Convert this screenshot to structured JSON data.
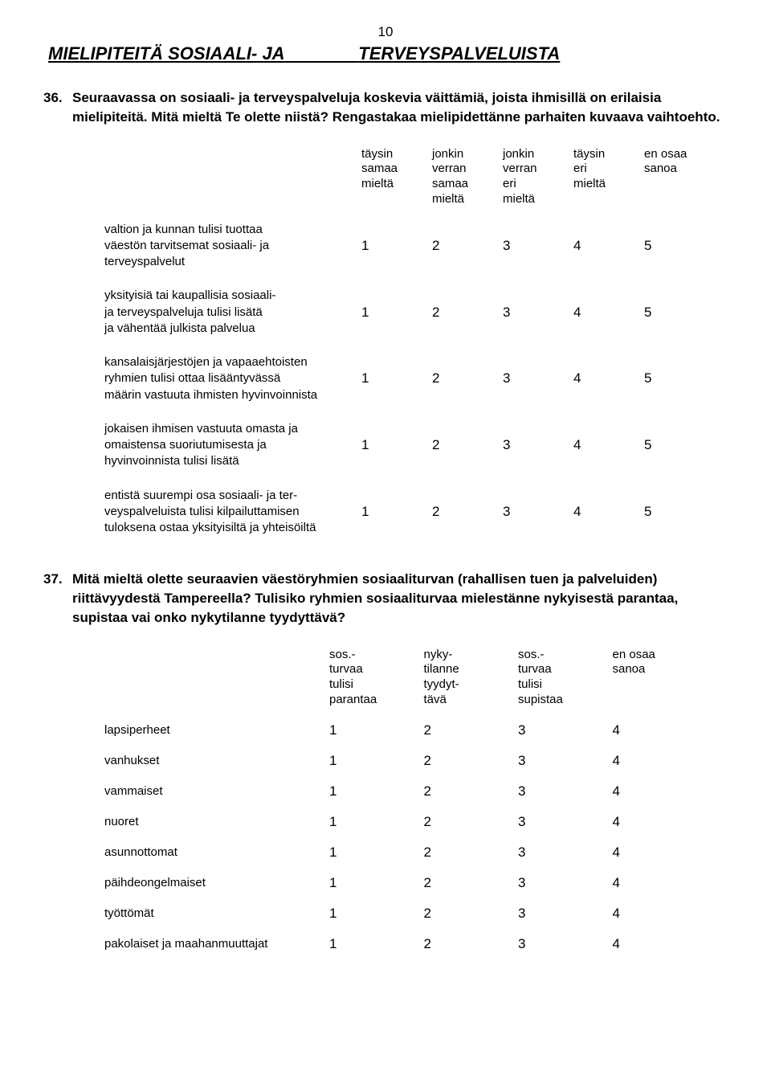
{
  "page_number": "10",
  "heading_left": "MIELIPITEITÄ SOSIAALI- JA",
  "heading_right": "TERVEYSPALVELUISTA",
  "q36": {
    "number": "36.",
    "text": "Seuraavassa on sosiaali- ja terveyspalveluja koskevia väittämiä, joista ihmisillä on erilaisia mielipiteitä. Mitä mieltä Te olette niistä? Rengastakaa mielipidettänne parhaiten kuvaava vaihtoehto.",
    "headers": {
      "c1": "täysin\nsamaa\nmieltä",
      "c2": "jonkin\nverran\nsamaa\nmieltä",
      "c3": "jonkin\nverran\neri\nmieltä",
      "c4": "täysin\neri\nmieltä",
      "c5": "en osaa\nsanoa"
    },
    "rows": [
      {
        "label": "valtion ja kunnan tulisi tuottaa\nväestön tarvitsemat sosiaali- ja\nterveyspalvelut",
        "v": [
          "1",
          "2",
          "3",
          "4",
          "5"
        ]
      },
      {
        "label": "yksityisiä tai kaupallisia sosiaali-\nja terveyspalveluja tulisi lisätä\nja vähentää julkista palvelua",
        "v": [
          "1",
          "2",
          "3",
          "4",
          "5"
        ]
      },
      {
        "label": "kansalaisjärjestöjen ja vapaaehtoisten\nryhmien tulisi ottaa lisääntyvässä\nmäärin vastuuta ihmisten hyvinvoinnista",
        "v": [
          "1",
          "2",
          "3",
          "4",
          "5"
        ]
      },
      {
        "label": "jokaisen ihmisen vastuuta omasta ja\nomaistensa suoriutumisesta ja\nhyvinvoinnista tulisi lisätä",
        "v": [
          "1",
          "2",
          "3",
          "4",
          "5"
        ]
      },
      {
        "label": "entistä suurempi osa sosiaali- ja ter-\nveyspalveluista tulisi kilpailuttamisen\ntuloksena ostaa yksityisiltä ja yhteisöiltä",
        "v": [
          "1",
          "2",
          "3",
          "4",
          "5"
        ]
      }
    ]
  },
  "q37": {
    "number": "37.",
    "text": "Mitä mieltä olette seuraavien väestöryhmien sosiaaliturvan (rahallisen tuen ja palveluiden) riittävyydestä Tampereella? Tulisiko ryhmien sosiaaliturvaa mielestänne nykyisestä parantaa, supistaa vai onko nykytilanne tyydyttävä?",
    "headers": {
      "c1": "sos.-\nturvaa\ntulisi\nparantaa",
      "c2": "nyky-\ntilanne\ntyydyt-\ntävä",
      "c3": "sos.-\nturvaa\ntulisi\nsupistaa",
      "c4": "en osaa\nsanoa"
    },
    "rows": [
      {
        "label": "lapsiperheet",
        "v": [
          "1",
          "2",
          "3",
          "4"
        ]
      },
      {
        "label": "vanhukset",
        "v": [
          "1",
          "2",
          "3",
          "4"
        ]
      },
      {
        "label": "vammaiset",
        "v": [
          "1",
          "2",
          "3",
          "4"
        ]
      },
      {
        "label": "nuoret",
        "v": [
          "1",
          "2",
          "3",
          "4"
        ]
      },
      {
        "label": "asunnottomat",
        "v": [
          "1",
          "2",
          "3",
          "4"
        ]
      },
      {
        "label": "päihdeongelmaiset",
        "v": [
          "1",
          "2",
          "3",
          "4"
        ]
      },
      {
        "label": "työttömät",
        "v": [
          "1",
          "2",
          "3",
          "4"
        ]
      },
      {
        "label": "pakolaiset ja maahanmuuttajat",
        "v": [
          "1",
          "2",
          "3",
          "4"
        ]
      }
    ]
  }
}
